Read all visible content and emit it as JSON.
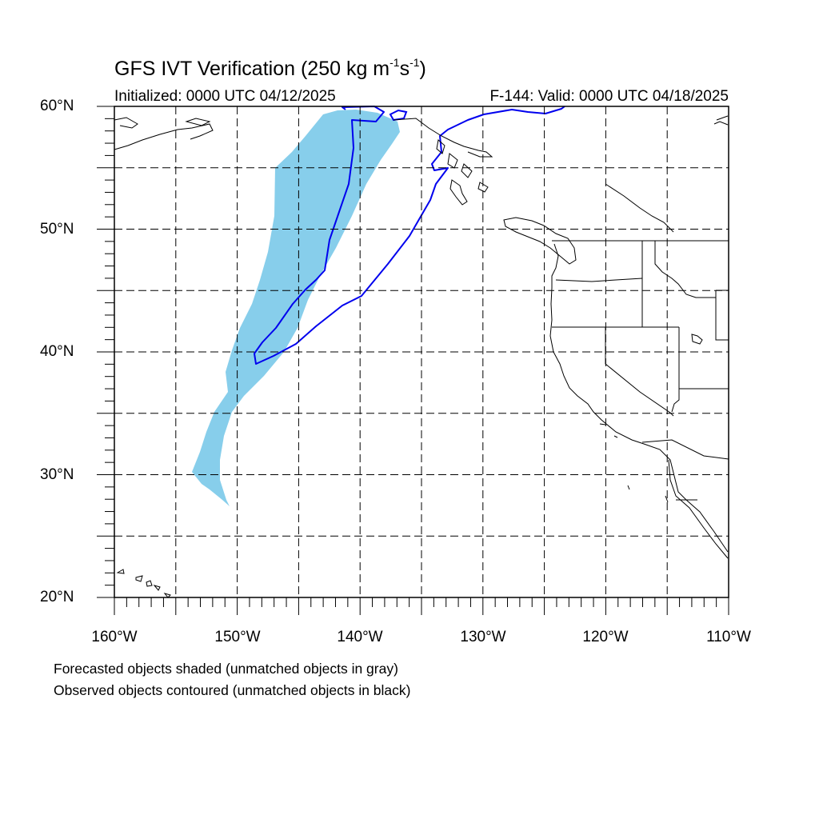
{
  "title": {
    "prefix": "GFS IVT Verification (250 kg m",
    "sup1": "-1",
    "mid": "s",
    "sup2": "-1",
    "suffix": ")"
  },
  "initialized": "Initialized: 0000 UTC 04/12/2025",
  "valid": "F-144: Valid: 0000 UTC 04/18/2025",
  "lat_labels": [
    "60°N",
    "50°N",
    "40°N",
    "30°N",
    "20°N"
  ],
  "lon_labels": [
    "160°W",
    "150°W",
    "140°W",
    "130°W",
    "120°W",
    "110°W"
  ],
  "notes": [
    "Forecasted objects shaded (unmatched objects in gray)",
    "Observed objects contoured (unmatched objects in black)"
  ],
  "map": {
    "projection": "cylindrical-equidistant",
    "lon_range": [
      -160,
      -110
    ],
    "lat_range": [
      20,
      60
    ],
    "grid": "dashed every 5 degrees",
    "colors": {
      "forecast_object": "#87ceeb",
      "observed_contour": "#0000ee",
      "coastline": "#000000"
    }
  }
}
